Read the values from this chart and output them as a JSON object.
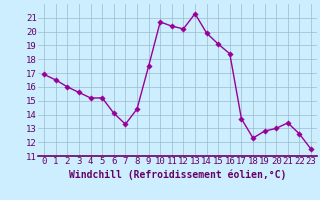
{
  "x": [
    0,
    1,
    2,
    3,
    4,
    5,
    6,
    7,
    8,
    9,
    10,
    11,
    12,
    13,
    14,
    15,
    16,
    17,
    18,
    19,
    20,
    21,
    22,
    23
  ],
  "y": [
    16.9,
    16.5,
    16.0,
    15.6,
    15.2,
    15.2,
    14.1,
    13.3,
    14.4,
    17.5,
    20.7,
    20.4,
    20.2,
    21.3,
    19.9,
    19.1,
    18.4,
    13.7,
    12.3,
    12.8,
    13.0,
    13.4,
    12.6,
    11.5
  ],
  "line_color": "#990099",
  "marker_color": "#990099",
  "bg_color": "#cceeff",
  "grid_color": "#99bbcc",
  "xlabel": "Windchill (Refroidissement éolien,°C)",
  "xlabel_color": "#660066",
  "tick_color": "#660066",
  "axis_color": "#660066",
  "ylim": [
    11,
    22
  ],
  "xlim": [
    -0.5,
    23.5
  ],
  "yticks": [
    11,
    12,
    13,
    14,
    15,
    16,
    17,
    18,
    19,
    20,
    21
  ],
  "xticks": [
    0,
    1,
    2,
    3,
    4,
    5,
    6,
    7,
    8,
    9,
    10,
    11,
    12,
    13,
    14,
    15,
    16,
    17,
    18,
    19,
    20,
    21,
    22,
    23
  ],
  "line_width": 1.0,
  "marker_size": 2.8,
  "font_size": 6.5,
  "xlabel_fontsize": 7.0
}
